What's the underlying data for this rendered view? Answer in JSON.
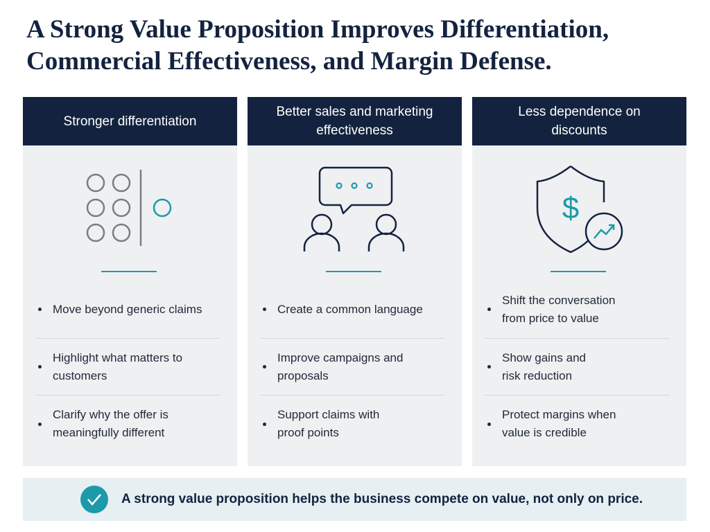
{
  "header": {
    "title": "A Strong Value Proposition Improves Differentiation, Commercial Effectiveness, and Margin Defense."
  },
  "columns": [
    {
      "heading": "Stronger differentiation",
      "bullets": [
        "Move beyond generic claims",
        "Highlight what matters to customers",
        "Clarify why the offer is meaningfully different"
      ]
    },
    {
      "heading": "Better sales and marketing effectiveness",
      "bullets": [
        "Create a common language",
        "Improve campaigns and proposals",
        "Support claims with proof points"
      ]
    },
    {
      "heading": "Less dependence on discounts",
      "bullets": [
        "Shift the conversation from price to value",
        "Show gains and risk reduction",
        "Protect margins when value is credible"
      ]
    }
  ],
  "footer": {
    "text": "A strong value proposition helps the business compete on value, not only on price."
  }
}
